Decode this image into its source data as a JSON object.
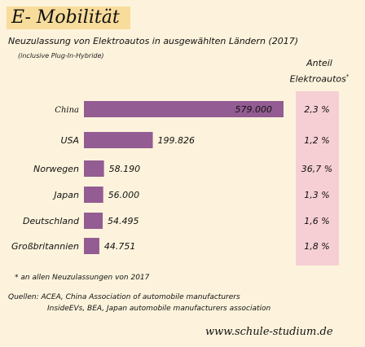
{
  "title": "E- Mobilität",
  "subtitle": "Neuzulassung von Elektroautos in ausgewählten Ländern (2017)",
  "subnote": "(inclusive Plug-In-Hybride)",
  "share_header": {
    "line1": "Anteil",
    "line2": "Elektroautos",
    "marker": "*"
  },
  "footnote": "* an allen Neuzulassungen von 2017",
  "sources": {
    "line1": "Quellen: ACEA, China Association of automobile manufacturers",
    "line2": "InsideEVs, BEA, Japan automobile manufacturers association"
  },
  "website": "www.schule-studium.de",
  "colors": {
    "bar": "#935c92",
    "share_column": "#f6cfd4",
    "title_box": "#f8dc9c",
    "background": "#fdf3dc"
  },
  "chart_data": {
    "type": "bar",
    "orientation": "horizontal",
    "categories": [
      "China",
      "USA",
      "Norwegen",
      "Japan",
      "Deutschland",
      "Großbritannien"
    ],
    "values": [
      579000,
      199826,
      58190,
      56000,
      54495,
      44751
    ],
    "value_labels": [
      "579.000",
      "199.826",
      "58.190",
      "56.000",
      "54.495",
      "44.751"
    ],
    "shares": [
      "2,3 %",
      "1,2 %",
      "36,7 %",
      "1,3 %",
      "1,6 %",
      "1,8 %"
    ],
    "xlim": [
      0,
      579000
    ],
    "grid": false
  }
}
